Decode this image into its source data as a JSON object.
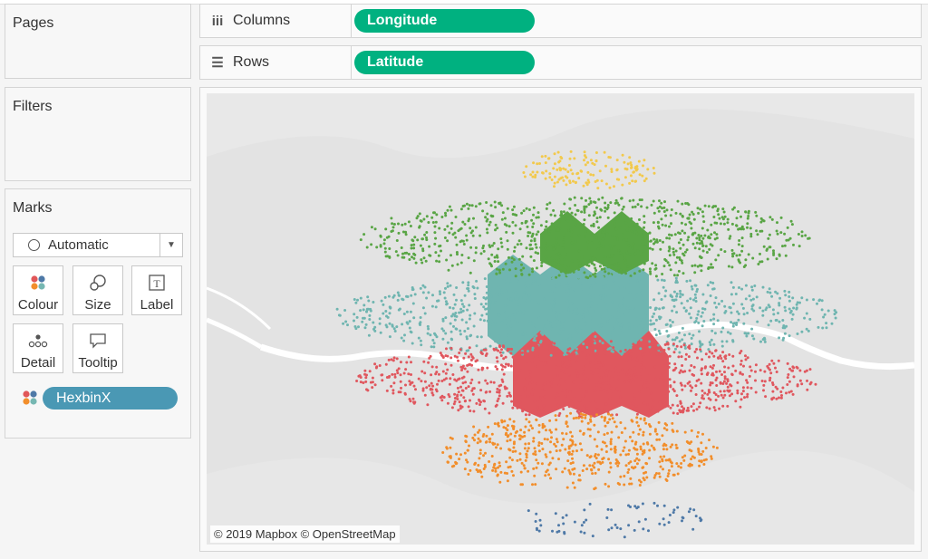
{
  "pages": {
    "title": "Pages"
  },
  "filters": {
    "title": "Filters"
  },
  "marks": {
    "title": "Marks",
    "mark_type": "Automatic",
    "buttons": [
      "Colour",
      "Size",
      "Label",
      "Detail",
      "Tooltip"
    ],
    "colour_field": "HexbinX"
  },
  "shelves": {
    "columns": {
      "label": "Columns",
      "field": "Longitude"
    },
    "rows": {
      "label": "Rows",
      "field": "Latitude"
    }
  },
  "map": {
    "attribution": "© 2019 Mapbox © OpenStreetMap",
    "colors": {
      "yellow": "#f2c94c",
      "green": "#59a545",
      "teal": "#6fb5b0",
      "red": "#e0575e",
      "orange": "#f28e2b",
      "blue": "#4e79a7"
    }
  },
  "colors": {
    "pill_green": "#00b180",
    "pill_blue": "#4a98b4"
  }
}
